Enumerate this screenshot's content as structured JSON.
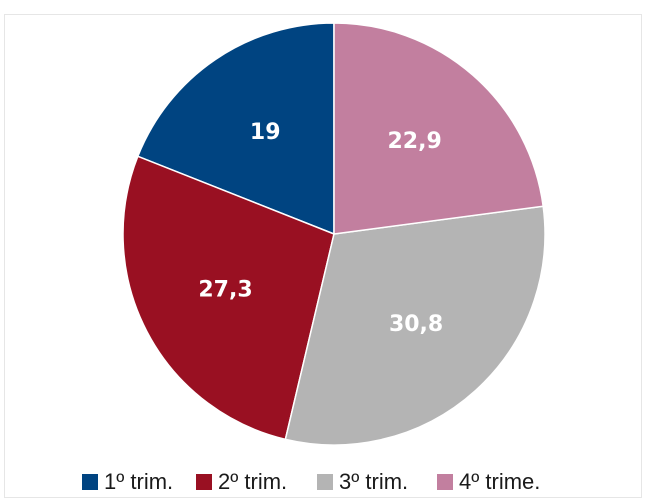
{
  "chart_data": {
    "type": "pie",
    "categories": [
      "1º trim.",
      "2º trim.",
      "3º trim.",
      "4º trime."
    ],
    "values": [
      19,
      27.3,
      30.8,
      22.9
    ],
    "data_labels": [
      "19",
      "27,3",
      "30,8",
      "22,9"
    ],
    "colors": [
      "#004481",
      "#991022",
      "#b4b4b4",
      "#c27f9f"
    ],
    "start": "12 o'clock",
    "direction": "counterclockwise",
    "legend": "bottom",
    "title": ""
  }
}
